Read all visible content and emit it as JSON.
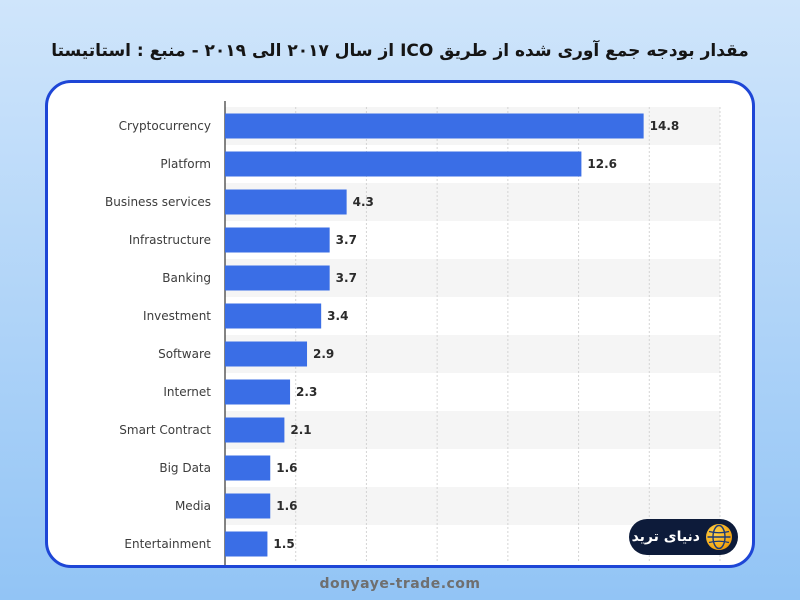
{
  "page": {
    "title": "مقدار بودجه جمع آوری شده از طریق ICO از سال ۲۰۱۷ الی ۲۰۱۹ - منبع : استاتیستا",
    "footer": "donyaye-trade.com"
  },
  "logo": {
    "text": "دنیای ترید"
  },
  "colors": {
    "bar": "#3a6ee6",
    "band": "#f5f5f5",
    "frame": "#1e46d6",
    "label": "#3c3c3c",
    "value": "#2b2b2b"
  },
  "chart_data": {
    "type": "bar",
    "orientation": "horizontal",
    "categories": [
      "Cryptocurrency",
      "Platform",
      "Business services",
      "Infrastructure",
      "Banking",
      "Investment",
      "Software",
      "Internet",
      "Smart Contract",
      "Big Data",
      "Media",
      "Entertainment"
    ],
    "values": [
      14.8,
      12.6,
      4.3,
      3.7,
      3.7,
      3.4,
      2.9,
      2.3,
      2.1,
      1.6,
      1.6,
      1.5
    ],
    "value_labels": [
      "14.8",
      "12.6",
      "4.3",
      "3.7",
      "3.7",
      "3.4",
      "2.9",
      "2.3",
      "2.1",
      "1.6",
      "1.6",
      "1.5"
    ],
    "title": "",
    "xlabel": "",
    "ylabel": "",
    "xlim": [
      0,
      17.5
    ],
    "grid": true,
    "legend": "none",
    "data_labels": true
  }
}
